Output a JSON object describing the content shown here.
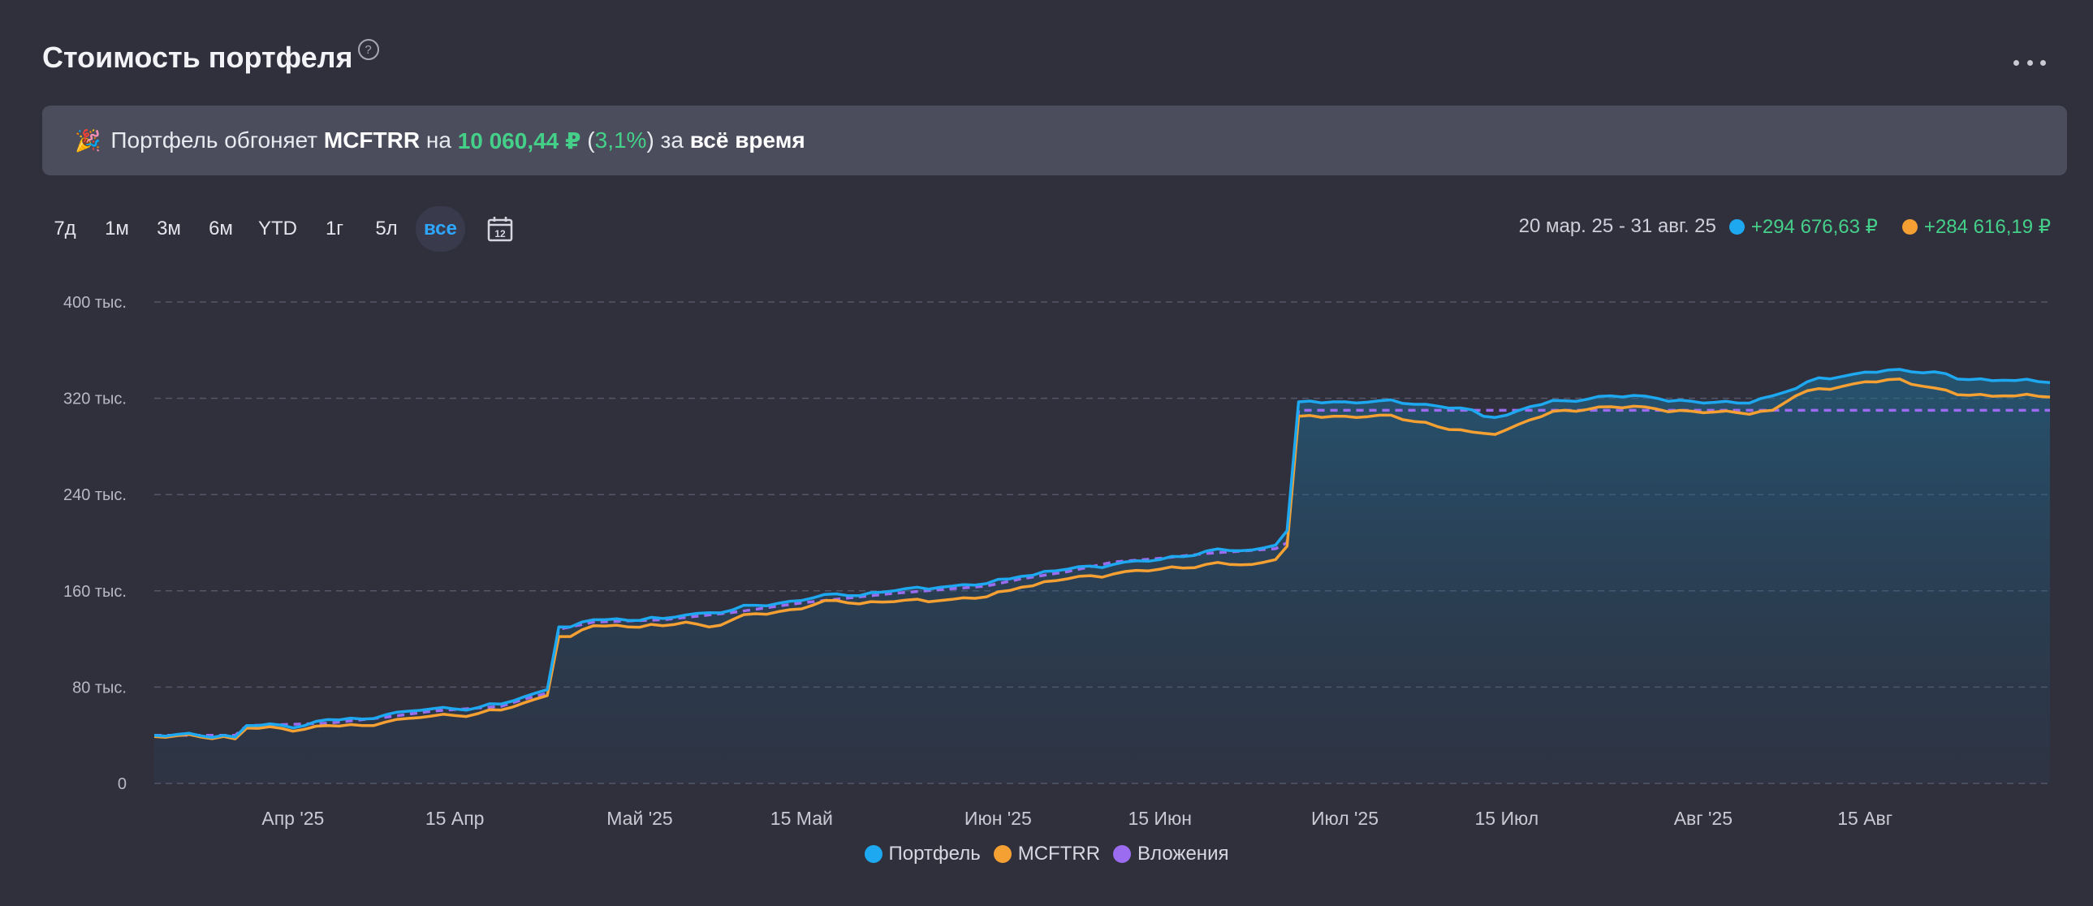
{
  "header": {
    "title": "Стоимость портфеля",
    "help_icon": "?",
    "menu_icon": "more-horizontal-icon"
  },
  "banner": {
    "icon": "🎉",
    "text_prefix": "Портфель обгоняет ",
    "benchmark": "MCFTRR",
    "text_on": " на ",
    "amount": "10 060,44 ₽",
    "paren_open": " (",
    "percent": "3,1%",
    "paren_close": ")",
    "text_for": " за ",
    "period": "всё время"
  },
  "periods": [
    "7д",
    "1м",
    "3м",
    "6м",
    "YTD",
    "1г",
    "5л",
    "все"
  ],
  "active_period": "все",
  "calendar_icon_text": "12",
  "range": {
    "dates": "20 мар. 25 - 31 авг. 25",
    "portfolio_change": "+294 676,63 ₽",
    "benchmark_change": "+284 616,19 ₽"
  },
  "colors": {
    "portfolio": "#1ea8f0",
    "benchmark": "#f5a033",
    "deposits": "#9b6cf0",
    "positive": "#45d08a",
    "background": "#30303d"
  },
  "chart_data": {
    "type": "line",
    "title": "",
    "ylim": [
      0,
      400000
    ],
    "y_ticks": [
      0,
      80000,
      160000,
      240000,
      320000,
      400000
    ],
    "y_tick_labels": [
      "0",
      "80 тыс.",
      "160 тыс.",
      "240 тыс.",
      "320 тыс.",
      "400 тыс."
    ],
    "x_range": [
      "2025-03-20",
      "2025-08-31"
    ],
    "x_ticks": [
      "2025-04-01",
      "2025-04-15",
      "2025-05-01",
      "2025-05-15",
      "2025-06-01",
      "2025-06-15",
      "2025-07-01",
      "2025-07-15",
      "2025-08-01",
      "2025-08-15"
    ],
    "x_tick_labels": [
      "Апр '25",
      "15 Апр",
      "Май '25",
      "15 Май",
      "Июн '25",
      "15 Июн",
      "Июл '25",
      "15 Июл",
      "Авг '25",
      "15 Авг"
    ],
    "grid": true,
    "legend": "bottom",
    "series": [
      {
        "name": "Портфель",
        "points": [
          [
            "2025-03-20",
            40000
          ],
          [
            "2025-03-26",
            40000
          ],
          [
            "2025-03-27",
            38500
          ],
          [
            "2025-03-28",
            48000
          ],
          [
            "2025-04-02",
            48000
          ],
          [
            "2025-04-04",
            53000
          ],
          [
            "2025-04-07",
            53500
          ],
          [
            "2025-04-09",
            57000
          ],
          [
            "2025-04-11",
            60000
          ],
          [
            "2025-04-13",
            62000
          ],
          [
            "2025-04-17",
            63000
          ],
          [
            "2025-04-19",
            66000
          ],
          [
            "2025-04-21",
            72000
          ],
          [
            "2025-04-23",
            78000
          ],
          [
            "2025-04-24",
            130000
          ],
          [
            "2025-04-25",
            130000
          ],
          [
            "2025-04-27",
            136000
          ],
          [
            "2025-05-03",
            137000
          ],
          [
            "2025-05-05",
            140000
          ],
          [
            "2025-05-09",
            144000
          ],
          [
            "2025-05-11",
            148000
          ],
          [
            "2025-05-15",
            152000
          ],
          [
            "2025-05-17",
            157000
          ],
          [
            "2025-05-19",
            156000
          ],
          [
            "2025-05-23",
            160000
          ],
          [
            "2025-05-27",
            163000
          ],
          [
            "2025-05-31",
            166000
          ],
          [
            "2025-06-03",
            172000
          ],
          [
            "2025-06-07",
            178000
          ],
          [
            "2025-06-11",
            182000
          ],
          [
            "2025-06-15",
            186000
          ],
          [
            "2025-06-19",
            193000
          ],
          [
            "2025-06-23",
            194000
          ],
          [
            "2025-06-25",
            198000
          ],
          [
            "2025-06-26",
            210000
          ],
          [
            "2025-06-27",
            317000
          ],
          [
            "2025-07-01",
            317000
          ],
          [
            "2025-07-04",
            318000
          ],
          [
            "2025-07-08",
            315000
          ],
          [
            "2025-07-11",
            312000
          ],
          [
            "2025-07-13",
            305000
          ],
          [
            "2025-07-15",
            306000
          ],
          [
            "2025-07-17",
            313000
          ],
          [
            "2025-07-20",
            318000
          ],
          [
            "2025-07-24",
            322000
          ],
          [
            "2025-07-28",
            320000
          ],
          [
            "2025-08-01",
            316000
          ],
          [
            "2025-08-04",
            316000
          ],
          [
            "2025-08-07",
            322000
          ],
          [
            "2025-08-09",
            328000
          ],
          [
            "2025-08-11",
            337000
          ],
          [
            "2025-08-14",
            340000
          ],
          [
            "2025-08-18",
            344000
          ],
          [
            "2025-08-21",
            342000
          ],
          [
            "2025-08-23",
            336000
          ],
          [
            "2025-08-27",
            335000
          ],
          [
            "2025-08-31",
            333000
          ]
        ]
      },
      {
        "name": "MCFTRR",
        "points": [
          [
            "2025-03-20",
            39000
          ],
          [
            "2025-03-26",
            39000
          ],
          [
            "2025-03-27",
            37000
          ],
          [
            "2025-03-28",
            46000
          ],
          [
            "2025-04-02",
            45000
          ],
          [
            "2025-04-04",
            48000
          ],
          [
            "2025-04-07",
            48000
          ],
          [
            "2025-04-09",
            51000
          ],
          [
            "2025-04-11",
            54000
          ],
          [
            "2025-04-13",
            56000
          ],
          [
            "2025-04-17",
            58000
          ],
          [
            "2025-04-19",
            61000
          ],
          [
            "2025-04-21",
            67000
          ],
          [
            "2025-04-23",
            73000
          ],
          [
            "2025-04-24",
            122000
          ],
          [
            "2025-04-25",
            122000
          ],
          [
            "2025-04-27",
            131000
          ],
          [
            "2025-05-03",
            131000
          ],
          [
            "2025-05-05",
            134000
          ],
          [
            "2025-05-07",
            130000
          ],
          [
            "2025-05-11",
            141000
          ],
          [
            "2025-05-15",
            145000
          ],
          [
            "2025-05-17",
            152000
          ],
          [
            "2025-05-19",
            150000
          ],
          [
            "2025-05-23",
            151000
          ],
          [
            "2025-05-27",
            152000
          ],
          [
            "2025-05-31",
            155000
          ],
          [
            "2025-06-03",
            163000
          ],
          [
            "2025-06-07",
            170000
          ],
          [
            "2025-06-11",
            174000
          ],
          [
            "2025-06-15",
            178000
          ],
          [
            "2025-06-19",
            182000
          ],
          [
            "2025-06-23",
            182000
          ],
          [
            "2025-06-25",
            186000
          ],
          [
            "2025-06-26",
            197000
          ],
          [
            "2025-06-27",
            305000
          ],
          [
            "2025-07-01",
            305000
          ],
          [
            "2025-07-04",
            306000
          ],
          [
            "2025-07-08",
            300000
          ],
          [
            "2025-07-10",
            294000
          ],
          [
            "2025-07-12",
            292000
          ],
          [
            "2025-07-14",
            290000
          ],
          [
            "2025-07-17",
            302000
          ],
          [
            "2025-07-20",
            310000
          ],
          [
            "2025-07-24",
            313000
          ],
          [
            "2025-07-28",
            311000
          ],
          [
            "2025-08-01",
            308000
          ],
          [
            "2025-08-04",
            308000
          ],
          [
            "2025-08-07",
            310000
          ],
          [
            "2025-08-09",
            322000
          ],
          [
            "2025-08-11",
            328000
          ],
          [
            "2025-08-14",
            332000
          ],
          [
            "2025-08-18",
            336000
          ],
          [
            "2025-08-20",
            330000
          ],
          [
            "2025-08-23",
            323000
          ],
          [
            "2025-08-27",
            322000
          ],
          [
            "2025-08-31",
            321000
          ]
        ]
      },
      {
        "name": "Вложения",
        "points": [
          [
            "2025-03-20",
            40000
          ],
          [
            "2025-03-27",
            40000
          ],
          [
            "2025-03-28",
            48000
          ],
          [
            "2025-04-04",
            50000
          ],
          [
            "2025-04-09",
            55000
          ],
          [
            "2025-04-13",
            60000
          ],
          [
            "2025-04-19",
            64000
          ],
          [
            "2025-04-21",
            70000
          ],
          [
            "2025-04-23",
            75000
          ],
          [
            "2025-04-24",
            128000
          ],
          [
            "2025-04-27",
            134000
          ],
          [
            "2025-05-03",
            136000
          ],
          [
            "2025-05-09",
            142000
          ],
          [
            "2025-05-15",
            150000
          ],
          [
            "2025-05-23",
            158000
          ],
          [
            "2025-05-31",
            164000
          ],
          [
            "2025-06-03",
            170000
          ],
          [
            "2025-06-07",
            176000
          ],
          [
            "2025-06-11",
            184000
          ],
          [
            "2025-06-15",
            187000
          ],
          [
            "2025-06-19",
            191000
          ],
          [
            "2025-06-25",
            195000
          ],
          [
            "2025-06-26",
            200000
          ],
          [
            "2025-06-27",
            310000
          ],
          [
            "2025-08-31",
            310000
          ]
        ]
      }
    ]
  }
}
